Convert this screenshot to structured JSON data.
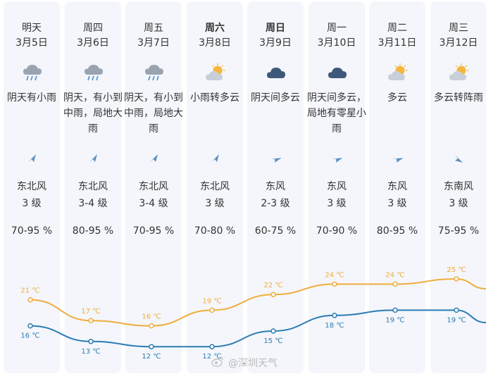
{
  "days": [
    {
      "day": "明天",
      "date": "3月5日",
      "bold": false,
      "icon": "cloud-rain-icon",
      "desc": "阴天有小雨",
      "wind": "东北风",
      "level": "3 级",
      "humidity": "70-95 %",
      "wind_dir": "northeast",
      "high": "21 ℃",
      "low": "16 ℃",
      "high_val": 21,
      "low_val": 16
    },
    {
      "day": "周四",
      "date": "3月6日",
      "bold": false,
      "icon": "cloud-rain-icon",
      "desc": "阴天，有小到中雨，局地大雨",
      "wind": "东北风",
      "level": "3-4 级",
      "humidity": "80-95 %",
      "wind_dir": "northeast",
      "high": "17 ℃",
      "low": "13 ℃",
      "high_val": 17,
      "low_val": 13
    },
    {
      "day": "周五",
      "date": "3月7日",
      "bold": false,
      "icon": "cloud-rain-icon",
      "desc": "阴天，有小到中雨，局地大雨",
      "wind": "东北风",
      "level": "3-4 级",
      "humidity": "70-95 %",
      "wind_dir": "northeast",
      "high": "16 ℃",
      "low": "12 ℃",
      "high_val": 16,
      "low_val": 12
    },
    {
      "day": "周六",
      "date": "3月8日",
      "bold": true,
      "icon": "partly-cloudy-icon",
      "desc": "小雨转多云",
      "wind": "东北风",
      "level": "3 级",
      "humidity": "70-80 %",
      "wind_dir": "northeast",
      "high": "19 ℃",
      "low": "12 ℃",
      "high_val": 19,
      "low_val": 12
    },
    {
      "day": "周日",
      "date": "3月9日",
      "bold": true,
      "icon": "dark-cloud-icon",
      "desc": "阴天间多云",
      "wind": "东风",
      "level": "2-3 级",
      "humidity": "60-75 %",
      "wind_dir": "east",
      "high": "22 ℃",
      "low": "15 ℃",
      "high_val": 22,
      "low_val": 15
    },
    {
      "day": "周一",
      "date": "3月10日",
      "bold": false,
      "icon": "dark-cloud-icon",
      "desc": "阴天间多云，局地有零星小雨",
      "wind": "东风",
      "level": "3 级",
      "humidity": "70-90 %",
      "wind_dir": "east",
      "high": "24 ℃",
      "low": "18 ℃",
      "high_val": 24,
      "low_val": 18
    },
    {
      "day": "周二",
      "date": "3月11日",
      "bold": false,
      "icon": "partly-cloudy-icon",
      "desc": "多云",
      "wind": "东风",
      "level": "3 级",
      "humidity": "80-95 %",
      "wind_dir": "east",
      "high": "24 ℃",
      "low": "19 ℃",
      "high_val": 24,
      "low_val": 19
    },
    {
      "day": "周三",
      "date": "3月12日",
      "bold": false,
      "icon": "partly-cloudy-icon",
      "desc": "多云转阵雨",
      "wind": "东南风",
      "level": "3 级",
      "humidity": "75-95 %",
      "wind_dir": "southeast",
      "high": "25 ℃",
      "low": "19 ℃",
      "high_val": 25,
      "low_val": 19
    }
  ],
  "colors": {
    "high": "#f0ad3c",
    "low": "#2b7cb3",
    "column": "#f4f6fb"
  },
  "watermark": "@深圳天气"
}
